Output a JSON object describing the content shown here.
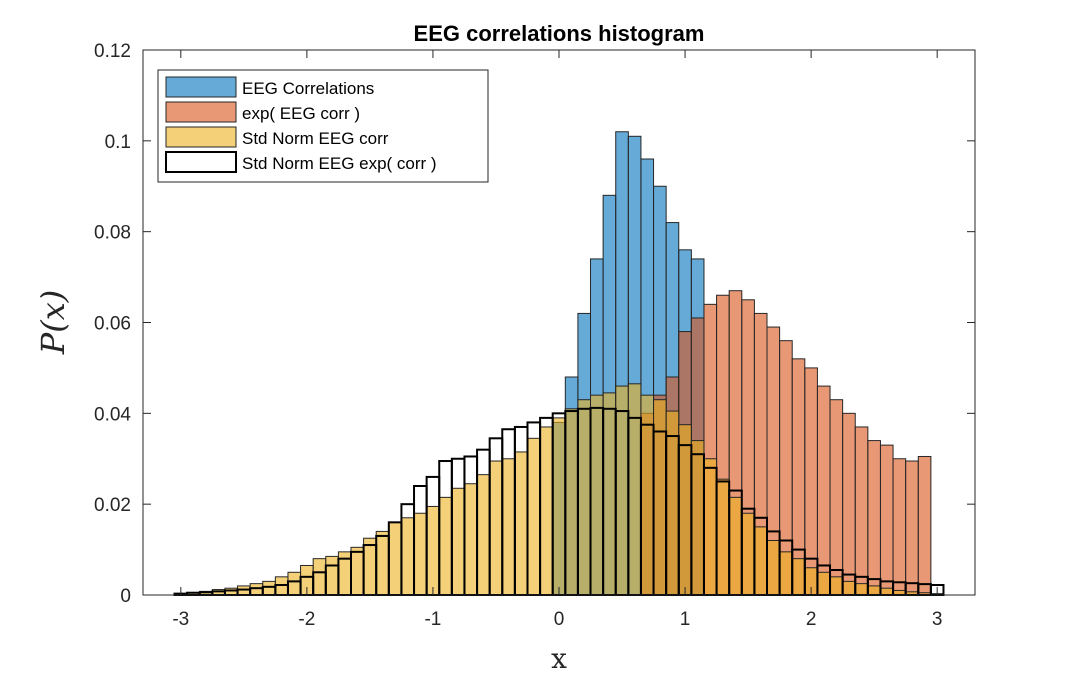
{
  "chart_data": {
    "type": "bar",
    "title": "EEG correlations histogram",
    "xlabel": "x",
    "ylabel": "P(x)",
    "xlim": [
      -3.3,
      3.3
    ],
    "ylim": [
      0,
      0.12
    ],
    "xticks": [
      -3,
      -2,
      -1,
      0,
      1,
      2,
      3
    ],
    "xtick_labels": [
      "-3",
      "-2",
      "-1",
      "0",
      "1",
      "2",
      "3"
    ],
    "yticks": [
      0,
      0.02,
      0.04,
      0.06,
      0.08,
      0.1,
      0.12
    ],
    "ytick_labels": [
      "0",
      "0.02",
      "0.04",
      "0.06",
      "0.08",
      "0.1",
      "0.12"
    ],
    "legend_position": "top-left",
    "grid": false,
    "bin_width": 0.1,
    "series": [
      {
        "name": "EEG Correlations",
        "color": "#0072BD",
        "fill_opacity": 0.6,
        "edge": "#262626",
        "x_start": -0.05,
        "values": [
          0.038,
          0.048,
          0.062,
          0.074,
          0.088,
          0.102,
          0.101,
          0.096,
          0.09,
          0.082,
          0.076,
          0.074
        ]
      },
      {
        "name": "exp( EEG corr )",
        "color": "#D95319",
        "fill_opacity": 0.6,
        "edge": "#262626",
        "x_start": 0.65,
        "values": [
          0.04,
          0.044,
          0.048,
          0.058,
          0.061,
          0.064,
          0.066,
          0.067,
          0.065,
          0.062,
          0.059,
          0.056,
          0.052,
          0.05,
          0.046,
          0.043,
          0.04,
          0.037,
          0.034,
          0.033,
          0.03,
          0.0295,
          0.0305
        ]
      },
      {
        "name": "Std Norm EEG corr",
        "color": "#EDB120",
        "fill_opacity": 0.6,
        "edge": "#262626",
        "x_start": -3.05,
        "values": [
          0.0003,
          0.0005,
          0.0008,
          0.0012,
          0.0015,
          0.002,
          0.0025,
          0.003,
          0.004,
          0.005,
          0.0065,
          0.008,
          0.0085,
          0.0095,
          0.0105,
          0.0125,
          0.014,
          0.016,
          0.017,
          0.018,
          0.0195,
          0.0215,
          0.0235,
          0.0245,
          0.0265,
          0.0295,
          0.03,
          0.0315,
          0.0345,
          0.037,
          0.039,
          0.041,
          0.043,
          0.044,
          0.0445,
          0.046,
          0.0465,
          0.044,
          0.043,
          0.0405,
          0.0375,
          0.034,
          0.03,
          0.0255,
          0.0215,
          0.018,
          0.015,
          0.012,
          0.0095,
          0.008,
          0.006,
          0.005,
          0.004,
          0.003,
          0.0025,
          0.002,
          0.0015,
          0.001,
          0.0007,
          0.0005,
          0.0003
        ]
      },
      {
        "name": "Std Norm EEG exp( corr )",
        "color": "#ffffff",
        "fill_opacity": 0,
        "edge": "#000000",
        "x_start": -3.05,
        "values": [
          0.0003,
          0.0005,
          0.0006,
          0.0008,
          0.001,
          0.0012,
          0.0015,
          0.0018,
          0.0022,
          0.003,
          0.004,
          0.005,
          0.0065,
          0.008,
          0.0095,
          0.011,
          0.013,
          0.016,
          0.02,
          0.024,
          0.026,
          0.0295,
          0.03,
          0.0305,
          0.032,
          0.0345,
          0.0365,
          0.037,
          0.038,
          0.039,
          0.04,
          0.0405,
          0.041,
          0.0412,
          0.041,
          0.0405,
          0.039,
          0.0375,
          0.036,
          0.035,
          0.033,
          0.031,
          0.028,
          0.025,
          0.023,
          0.019,
          0.017,
          0.014,
          0.012,
          0.01,
          0.008,
          0.0065,
          0.0055,
          0.0045,
          0.004,
          0.0035,
          0.003,
          0.0028,
          0.0026,
          0.0024,
          0.0022
        ]
      }
    ]
  }
}
